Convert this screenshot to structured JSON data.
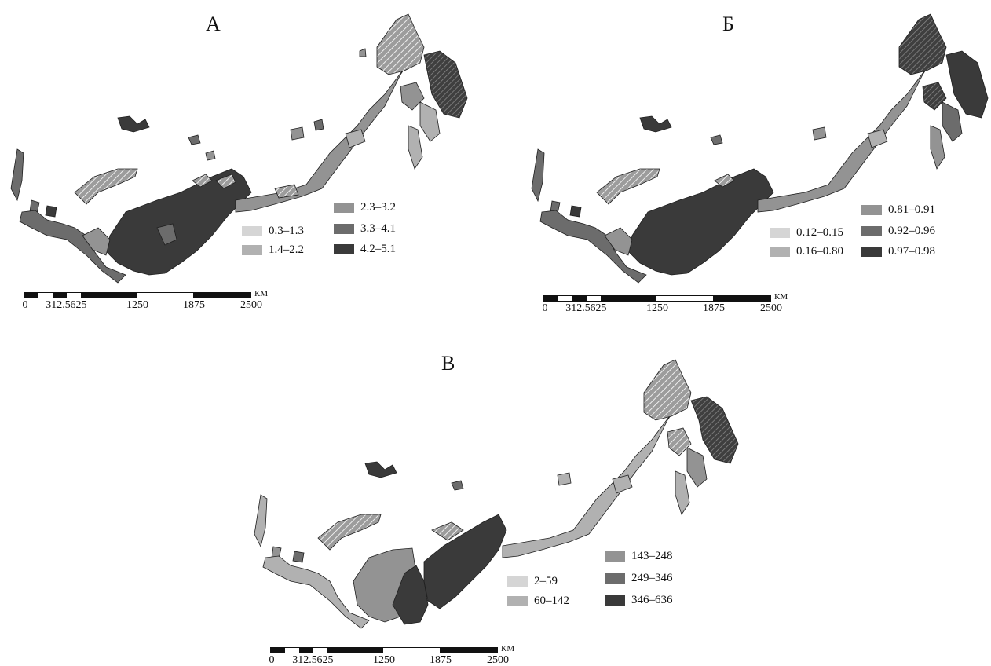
{
  "colors": {
    "class1": "#d5d5d5",
    "class2": "#b1b1b1",
    "class3": "#939393",
    "class4": "#6c6c6c",
    "class5": "#3a3a3a",
    "outline": "#1f1f1f",
    "scalebar": "#111111"
  },
  "scale": {
    "ticks": [
      "0",
      "312.5",
      "625",
      "1250",
      "1875",
      "2500"
    ],
    "unit": "КМ"
  },
  "panels": {
    "a": {
      "title": "А",
      "legend": [
        "0.3–1.3",
        "1.4–2.2",
        "2.3–3.2",
        "3.3–4.1",
        "4.2–5.1"
      ]
    },
    "b": {
      "title": "Б",
      "legend": [
        "0.12–0.15",
        "0.16–0.80",
        "0.81–0.91",
        "0.92–0.96",
        "0.97–0.98"
      ]
    },
    "c": {
      "title": "В",
      "legend": [
        "2–59",
        "60–142",
        "143–248",
        "249–346",
        "346–636"
      ]
    }
  }
}
